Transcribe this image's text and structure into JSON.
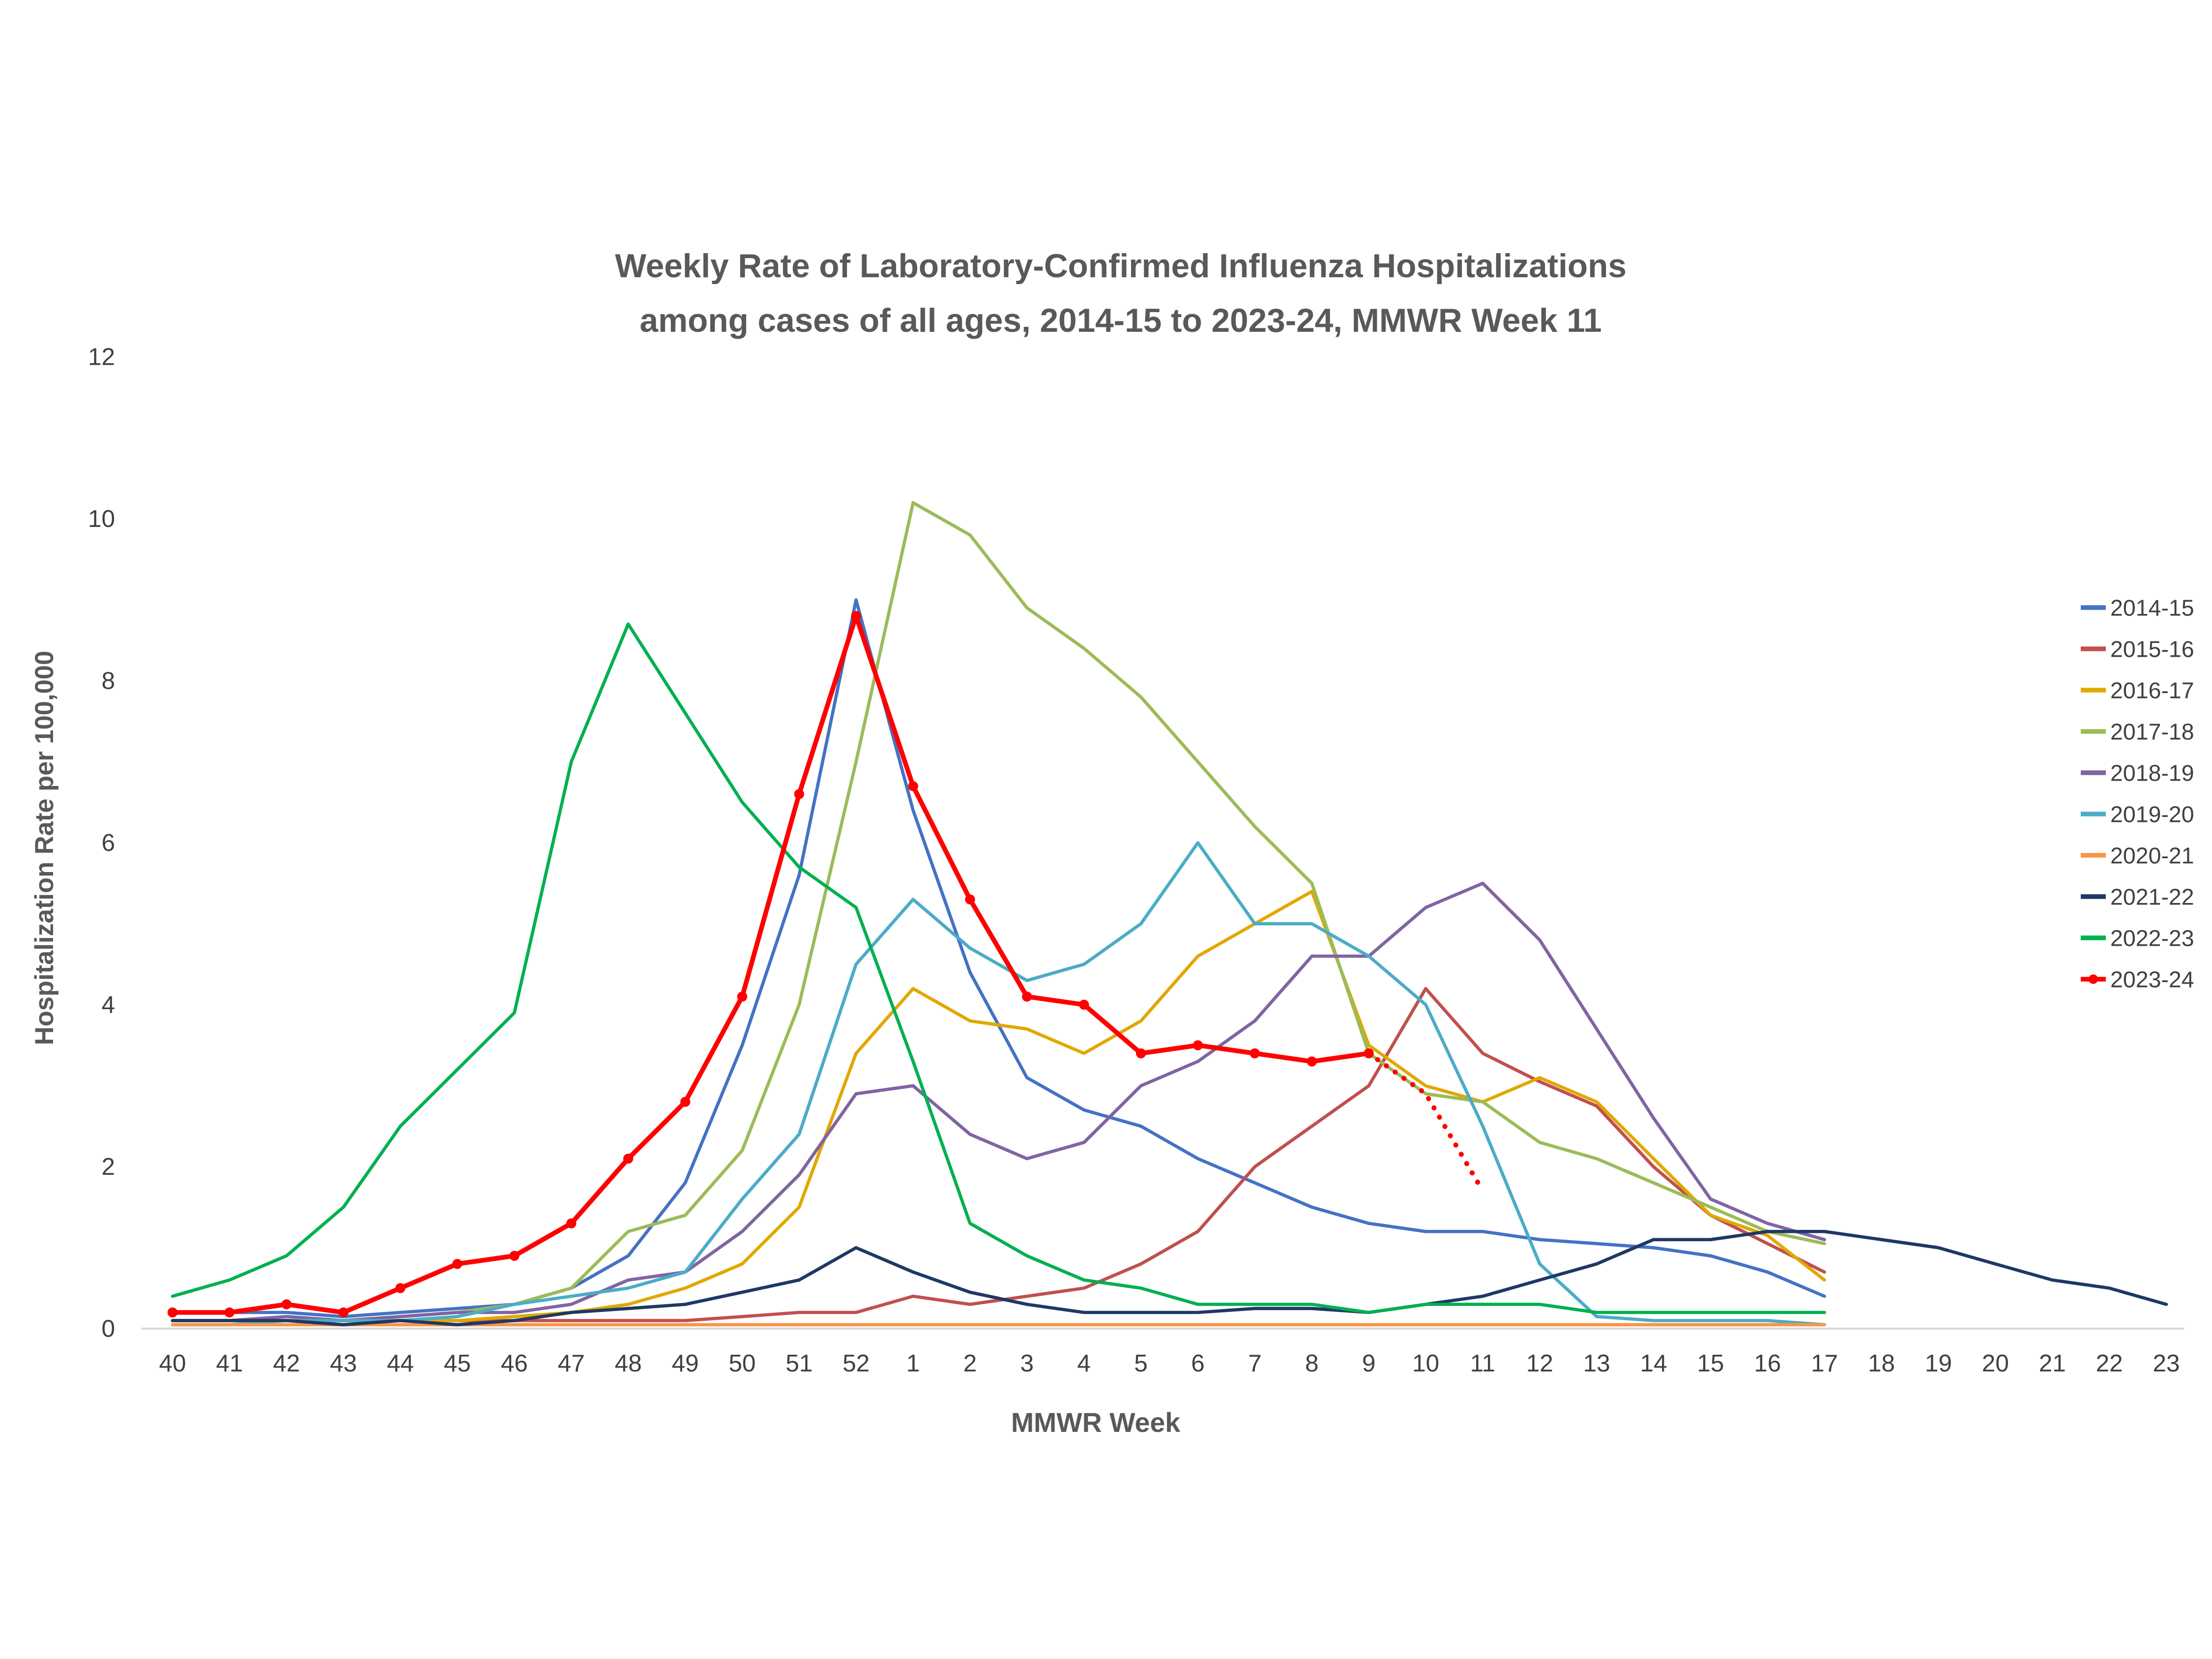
{
  "colors": {
    "background": "#FFFFFF",
    "axis_line": "#D9D9D9",
    "tick_text": "#404040",
    "title_text": "#595959"
  },
  "chart_data": {
    "type": "line",
    "title_line1": "Weekly Rate of Laboratory-Confirmed Influenza Hospitalizations",
    "title_line2": "among cases of all ages, 2014-15 to 2023-24, MMWR Week 11",
    "xlabel": "MMWR Week",
    "ylabel": "Hospitalization Rate per 100,000",
    "ylim": [
      0,
      12
    ],
    "ytick_step": 2,
    "grid": false,
    "legend_position": "right",
    "categories": [
      "40",
      "41",
      "42",
      "43",
      "44",
      "45",
      "46",
      "47",
      "48",
      "49",
      "50",
      "51",
      "52",
      "1",
      "2",
      "3",
      "4",
      "5",
      "6",
      "7",
      "8",
      "9",
      "10",
      "11",
      "12",
      "13",
      "14",
      "15",
      "16",
      "17",
      "18",
      "19",
      "20",
      "21",
      "22",
      "23"
    ],
    "series": [
      {
        "name": "2014-15",
        "color": "#4472C4",
        "values": [
          0.2,
          0.2,
          0.2,
          0.15,
          0.2,
          0.25,
          0.3,
          0.5,
          0.9,
          1.8,
          3.5,
          5.6,
          9.0,
          6.4,
          4.4,
          3.1,
          2.7,
          2.5,
          2.1,
          1.8,
          1.5,
          1.3,
          1.2,
          1.2,
          1.1,
          1.05,
          1.0,
          0.9,
          0.7,
          0.4,
          null,
          null,
          null,
          null,
          null,
          null
        ]
      },
      {
        "name": "2015-16",
        "color": "#C0504D",
        "values": [
          0.1,
          0.1,
          0.1,
          0.1,
          0.1,
          0.1,
          0.1,
          0.1,
          0.1,
          0.1,
          0.15,
          0.2,
          0.2,
          0.4,
          0.3,
          0.4,
          0.5,
          0.8,
          1.2,
          2.0,
          2.5,
          3.0,
          4.2,
          3.4,
          3.05,
          2.75,
          2.0,
          1.4,
          1.05,
          0.7,
          null,
          null,
          null,
          null,
          null,
          null
        ]
      },
      {
        "name": "2016-17",
        "color": "#E0A800",
        "values": [
          0.1,
          0.1,
          0.1,
          0.05,
          0.1,
          0.1,
          0.15,
          0.2,
          0.3,
          0.5,
          0.8,
          1.5,
          3.4,
          4.2,
          3.8,
          3.7,
          3.4,
          3.8,
          4.6,
          5.0,
          5.4,
          3.5,
          3.0,
          2.8,
          3.1,
          2.8,
          2.1,
          1.4,
          1.15,
          0.6,
          null,
          null,
          null,
          null,
          null,
          null
        ]
      },
      {
        "name": "2017-18",
        "color": "#9BBB59",
        "values": [
          0.1,
          0.1,
          0.1,
          0.1,
          0.15,
          0.2,
          0.3,
          0.5,
          1.2,
          1.4,
          2.2,
          4.0,
          7.0,
          10.2,
          9.8,
          8.9,
          8.4,
          7.8,
          7.0,
          6.2,
          5.5,
          3.4,
          2.9,
          2.8,
          2.3,
          2.1,
          1.8,
          1.5,
          1.2,
          1.05,
          null,
          null,
          null,
          null,
          null,
          null
        ]
      },
      {
        "name": "2018-19",
        "color": "#8064A2",
        "values": [
          0.1,
          0.1,
          0.15,
          0.1,
          0.15,
          0.2,
          0.2,
          0.3,
          0.6,
          0.7,
          1.2,
          1.9,
          2.9,
          3.0,
          2.4,
          2.1,
          2.3,
          3.0,
          3.3,
          3.8,
          4.6,
          4.6,
          5.2,
          5.5,
          4.8,
          3.7,
          2.6,
          1.6,
          1.3,
          1.1,
          null,
          null,
          null,
          null,
          null,
          null
        ]
      },
      {
        "name": "2019-20",
        "color": "#4BACC6",
        "values": [
          0.05,
          0.05,
          0.1,
          0.1,
          0.1,
          0.15,
          0.3,
          0.4,
          0.5,
          0.7,
          1.6,
          2.4,
          4.5,
          5.3,
          4.7,
          4.3,
          4.5,
          5.0,
          6.0,
          5.0,
          5.0,
          4.6,
          4.0,
          2.5,
          0.8,
          0.15,
          0.1,
          0.1,
          0.1,
          0.05,
          null,
          null,
          null,
          null,
          null,
          null
        ]
      },
      {
        "name": "2020-21",
        "color": "#F79646",
        "values": [
          0.05,
          0.05,
          0.05,
          0.05,
          0.05,
          0.05,
          0.05,
          0.05,
          0.05,
          0.05,
          0.05,
          0.05,
          0.05,
          0.05,
          0.05,
          0.05,
          0.05,
          0.05,
          0.05,
          0.05,
          0.05,
          0.05,
          0.05,
          0.05,
          0.05,
          0.05,
          0.05,
          0.05,
          0.05,
          0.05,
          null,
          null,
          null,
          null,
          null,
          null
        ]
      },
      {
        "name": "2021-22",
        "color": "#1F3864",
        "values": [
          0.1,
          0.1,
          0.1,
          0.05,
          0.1,
          0.05,
          0.1,
          0.2,
          0.25,
          0.3,
          0.45,
          0.6,
          1.0,
          0.7,
          0.45,
          0.3,
          0.2,
          0.2,
          0.2,
          0.25,
          0.25,
          0.2,
          0.3,
          0.4,
          0.6,
          0.8,
          1.1,
          1.1,
          1.2,
          1.2,
          1.1,
          1.0,
          0.8,
          0.6,
          0.5,
          0.3
        ]
      },
      {
        "name": "2022-23",
        "color": "#00B050",
        "values": [
          0.4,
          0.6,
          0.9,
          1.5,
          2.5,
          3.2,
          3.9,
          7.0,
          8.7,
          7.6,
          6.5,
          5.7,
          5.2,
          3.3,
          1.3,
          0.9,
          0.6,
          0.5,
          0.3,
          0.3,
          0.3,
          0.2,
          0.3,
          0.3,
          0.3,
          0.2,
          0.2,
          0.2,
          0.2,
          0.2,
          null,
          null,
          null,
          null,
          null,
          null
        ]
      },
      {
        "name": "2023-24",
        "color": "#FF0000",
        "marker": true,
        "width": 3.2,
        "values": [
          0.2,
          0.2,
          0.3,
          0.2,
          0.5,
          0.8,
          0.9,
          1.3,
          2.1,
          2.8,
          4.1,
          6.6,
          8.8,
          6.7,
          5.3,
          4.1,
          4.0,
          3.4,
          3.5,
          3.4,
          3.3,
          3.4,
          null,
          null,
          null,
          null,
          null,
          null,
          null,
          null,
          null,
          null,
          null,
          null,
          null,
          null
        ],
        "dotted_extension": {
          "start_index": 21,
          "values": [
            3.4,
            2.9,
            1.7
          ]
        }
      }
    ]
  }
}
